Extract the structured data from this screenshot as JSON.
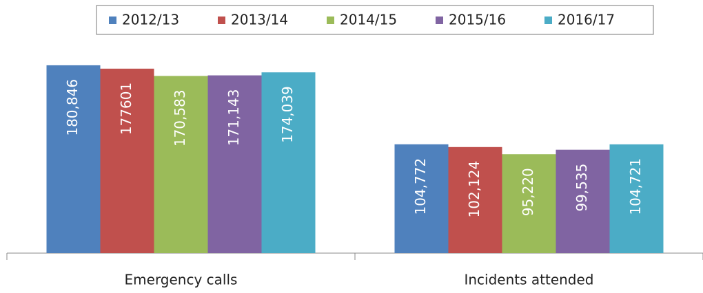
{
  "chart_data": {
    "type": "bar",
    "categories": [
      "Emergency calls",
      "Incidents attended"
    ],
    "series": [
      {
        "name": "2012/13",
        "color": "#4f81bd",
        "values": [
          180846,
          104772
        ],
        "value_labels": [
          "180,846",
          "104,772"
        ]
      },
      {
        "name": "2013/14",
        "color": "#c0504d",
        "values": [
          177601,
          102124
        ],
        "value_labels": [
          "177601",
          "102,124"
        ]
      },
      {
        "name": "2014/15",
        "color": "#9bbb59",
        "values": [
          170583,
          95220
        ],
        "value_labels": [
          "170,583",
          "95,220"
        ]
      },
      {
        "name": "2015/16",
        "color": "#8064a2",
        "values": [
          171143,
          99535
        ],
        "value_labels": [
          "171,143",
          "99,535"
        ]
      },
      {
        "name": "2016/17",
        "color": "#4bacc6",
        "values": [
          174039,
          104721
        ],
        "value_labels": [
          "174,039",
          "104,721"
        ]
      }
    ],
    "ylim": [
      0,
      200000
    ],
    "legend": "top"
  }
}
